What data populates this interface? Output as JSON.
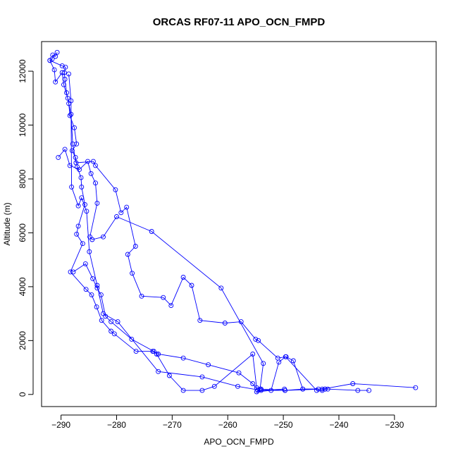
{
  "chart_data": {
    "type": "line",
    "title": "ORCAS RF07-11 APO_OCN_FMPD",
    "xlabel": "APO_OCN_FMPD",
    "ylabel": "Altitude (m)",
    "xlim": [
      -293.5,
      -222.5
    ],
    "ylim": [
      -450,
      13100
    ],
    "x_ticks": [
      -290,
      -280,
      -270,
      -260,
      -250,
      -240,
      -230
    ],
    "y_ticks": [
      0,
      2000,
      4000,
      6000,
      8000,
      10000,
      12000
    ],
    "marker": "open-circle",
    "grid": false,
    "color": "#0000ff",
    "series": [
      {
        "values": [
          [
            -290.7,
            12700
          ],
          [
            -291.0,
            12550
          ],
          [
            -291.5,
            12600
          ],
          [
            -291.6,
            12450
          ],
          [
            -292.0,
            12400
          ],
          [
            -289.8,
            12200
          ],
          [
            -289.2,
            12150
          ],
          [
            -289.4,
            11950
          ],
          [
            -289.3,
            11700
          ],
          [
            -289.0,
            11200
          ],
          [
            -288.6,
            10800
          ],
          [
            -288.4,
            10350
          ],
          [
            -287.6,
            9900
          ],
          [
            -287.2,
            9300
          ],
          [
            -288.0,
            9050
          ],
          [
            -287.4,
            8800
          ],
          [
            -287.1,
            8450
          ],
          [
            -286.4,
            8050
          ],
          [
            -286.3,
            7700
          ],
          [
            -285.7,
            7050
          ],
          [
            -286.9,
            6250
          ],
          [
            -287.2,
            5950
          ],
          [
            -286.1,
            5600
          ],
          [
            -288.3,
            4550
          ],
          [
            -285.5,
            3900
          ],
          [
            -284.5,
            3700
          ],
          [
            -283.6,
            3250
          ],
          [
            -282.7,
            2750
          ],
          [
            -281.0,
            2350
          ],
          [
            -280.4,
            2250
          ],
          [
            -276.5,
            1600
          ],
          [
            -273.5,
            1600
          ],
          [
            -272.5,
            1500
          ],
          [
            -268.0,
            1350
          ],
          [
            -263.5,
            1100
          ],
          [
            -258.0,
            800
          ],
          [
            -255.5,
            400
          ],
          [
            -254.6,
            150
          ],
          [
            -249.7,
            150
          ],
          [
            -243.0,
            200
          ],
          [
            -237.5,
            400
          ],
          [
            -226.2,
            250
          ]
        ]
      },
      {
        "values": [
          [
            -292.0,
            12400
          ],
          [
            -291.2,
            12050
          ],
          [
            -291.0,
            11600
          ],
          [
            -289.8,
            11950
          ],
          [
            -289.5,
            11500
          ],
          [
            -288.8,
            11000
          ],
          [
            -288.2,
            10400
          ],
          [
            -287.9,
            9300
          ],
          [
            -287.3,
            8600
          ],
          [
            -284.2,
            8650
          ],
          [
            -283.8,
            8500
          ],
          [
            -280.2,
            7600
          ],
          [
            -279.2,
            6750
          ],
          [
            -278.2,
            6950
          ],
          [
            -276.6,
            5500
          ],
          [
            -278.0,
            5200
          ],
          [
            -277.2,
            4500
          ],
          [
            -275.5,
            3650
          ],
          [
            -271.6,
            3600
          ],
          [
            -270.2,
            3300
          ],
          [
            -268.0,
            4350
          ],
          [
            -266.5,
            4050
          ],
          [
            -265.0,
            2750
          ],
          [
            -260.5,
            2650
          ],
          [
            -257.6,
            2700
          ],
          [
            -255.0,
            2050
          ],
          [
            -254.5,
            2000
          ],
          [
            -251.0,
            1350
          ],
          [
            -249.5,
            1400
          ],
          [
            -248.2,
            1250
          ],
          [
            -246.5,
            200
          ],
          [
            -242.5,
            200
          ],
          [
            -242.0,
            200
          ],
          [
            -236.6,
            150
          ],
          [
            -234.6,
            150
          ]
        ]
      },
      {
        "values": [
          [
            -290.5,
            8800
          ],
          [
            -289.3,
            9100
          ],
          [
            -288.4,
            8500
          ],
          [
            -286.7,
            8350
          ],
          [
            -285.2,
            8650
          ],
          [
            -284.6,
            8200
          ],
          [
            -283.8,
            7850
          ],
          [
            -283.5,
            7100
          ],
          [
            -284.8,
            5850
          ],
          [
            -284.4,
            5750
          ],
          [
            -282.4,
            5850
          ],
          [
            -280.0,
            6600
          ],
          [
            -273.7,
            6050
          ],
          [
            -261.2,
            3950
          ],
          [
            -253.6,
            1150
          ],
          [
            -254.2,
            200
          ],
          [
            -254.8,
            100
          ],
          [
            -252.2,
            150
          ],
          [
            -250.8,
            1200
          ],
          [
            -249.6,
            1400
          ],
          [
            -244.0,
            150
          ],
          [
            -243.0,
            150
          ],
          [
            -242.5,
            200
          ]
        ]
      },
      {
        "values": [
          [
            -287.8,
            4550
          ],
          [
            -285.6,
            4850
          ],
          [
            -284.3,
            4300
          ],
          [
            -283.5,
            3950
          ],
          [
            -282.8,
            3700
          ],
          [
            -282.0,
            2900
          ],
          [
            -281.0,
            2700
          ],
          [
            -277.3,
            2050
          ],
          [
            -273.3,
            1600
          ],
          [
            -272.8,
            1500
          ],
          [
            -270.5,
            700
          ],
          [
            -268.0,
            150
          ],
          [
            -264.6,
            150
          ],
          [
            -262.4,
            300
          ],
          [
            -255.5,
            1500
          ],
          [
            -254.8,
            250
          ],
          [
            -254.0,
            200
          ],
          [
            -249.7,
            150
          ],
          [
            -246.5,
            200
          ],
          [
            -243.7,
            200
          ]
        ]
      },
      {
        "values": [
          [
            -288.6,
            11900
          ],
          [
            -288.2,
            10900
          ],
          [
            -288.1,
            7700
          ],
          [
            -286.9,
            7000
          ],
          [
            -286.3,
            7300
          ],
          [
            -285.4,
            6800
          ],
          [
            -284.9,
            5300
          ],
          [
            -283.5,
            4050
          ],
          [
            -282.4,
            3000
          ],
          [
            -279.8,
            2700
          ],
          [
            -272.5,
            850
          ],
          [
            -264.6,
            650
          ],
          [
            -258.2,
            300
          ],
          [
            -254.0,
            150
          ],
          [
            -249.8,
            200
          ]
        ]
      }
    ]
  }
}
